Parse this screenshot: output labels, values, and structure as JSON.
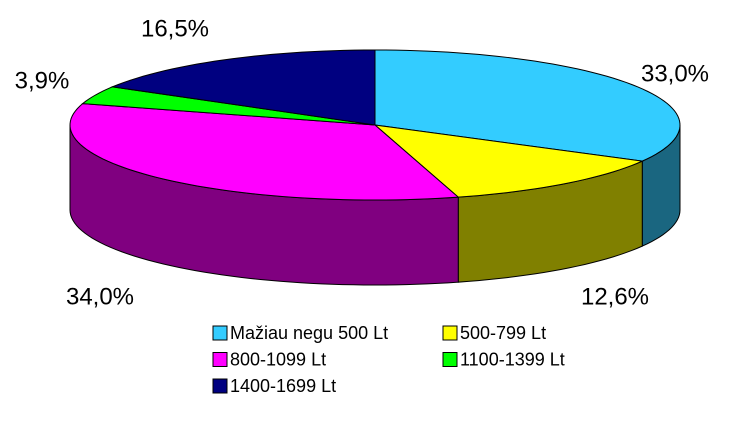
{
  "chart_data": {
    "type": "pie3d",
    "categories": [
      "Mažiau negu 500 Lt",
      "500-799 Lt",
      "800-1099 Lt",
      "1100-1399 Lt",
      "1400-1699 Lt"
    ],
    "values": [
      33.0,
      12.6,
      34.0,
      3.9,
      16.5
    ],
    "value_labels": [
      "33,0%",
      "12,6%",
      "34,0%",
      "3,9%",
      "16,5%"
    ],
    "colors": [
      "#33CCFF",
      "#FFFF00",
      "#FF00FF",
      "#00FF00",
      "#000080"
    ],
    "legend": "bottom"
  }
}
